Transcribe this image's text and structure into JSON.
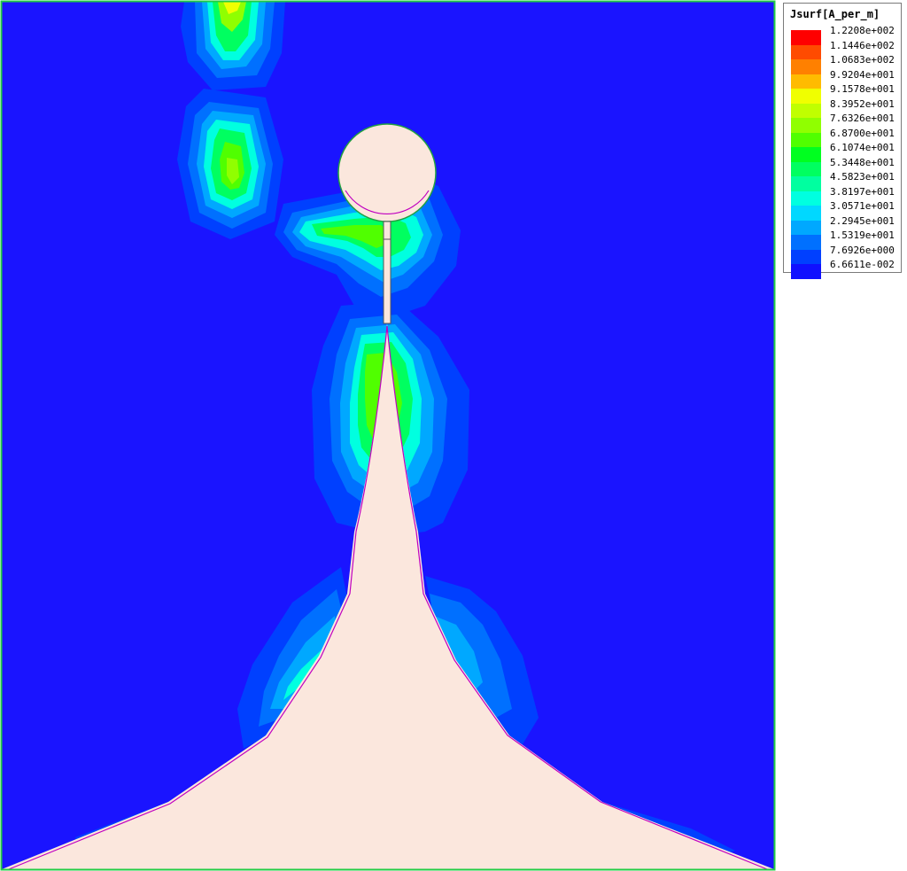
{
  "legend": {
    "title": "Jsurf[A_per_m]",
    "labels": [
      "1.2208e+002",
      "1.1446e+002",
      "1.0683e+002",
      "9.9204e+001",
      "9.1578e+001",
      "8.3952e+001",
      "7.6326e+001",
      "6.8700e+001",
      "6.1074e+001",
      "5.3448e+001",
      "4.5823e+001",
      "3.8197e+001",
      "3.0571e+001",
      "2.2945e+001",
      "1.5319e+001",
      "7.6926e+000",
      "6.6611e-002"
    ],
    "colors": [
      "#ff0000",
      "#ff4b00",
      "#ff8000",
      "#ffbb00",
      "#f0ff00",
      "#c0ff00",
      "#90ff00",
      "#50ff00",
      "#00ff20",
      "#00ff60",
      "#00ffa0",
      "#00ffe0",
      "#00d8ff",
      "#00a8ff",
      "#0070ff",
      "#0040ff",
      "#1010ff"
    ]
  },
  "colors": {
    "background_field": "#1a14ff",
    "metal": "#fbe7dd",
    "boundary": "#22cc44",
    "edge_trace": "#c000c0"
  }
}
